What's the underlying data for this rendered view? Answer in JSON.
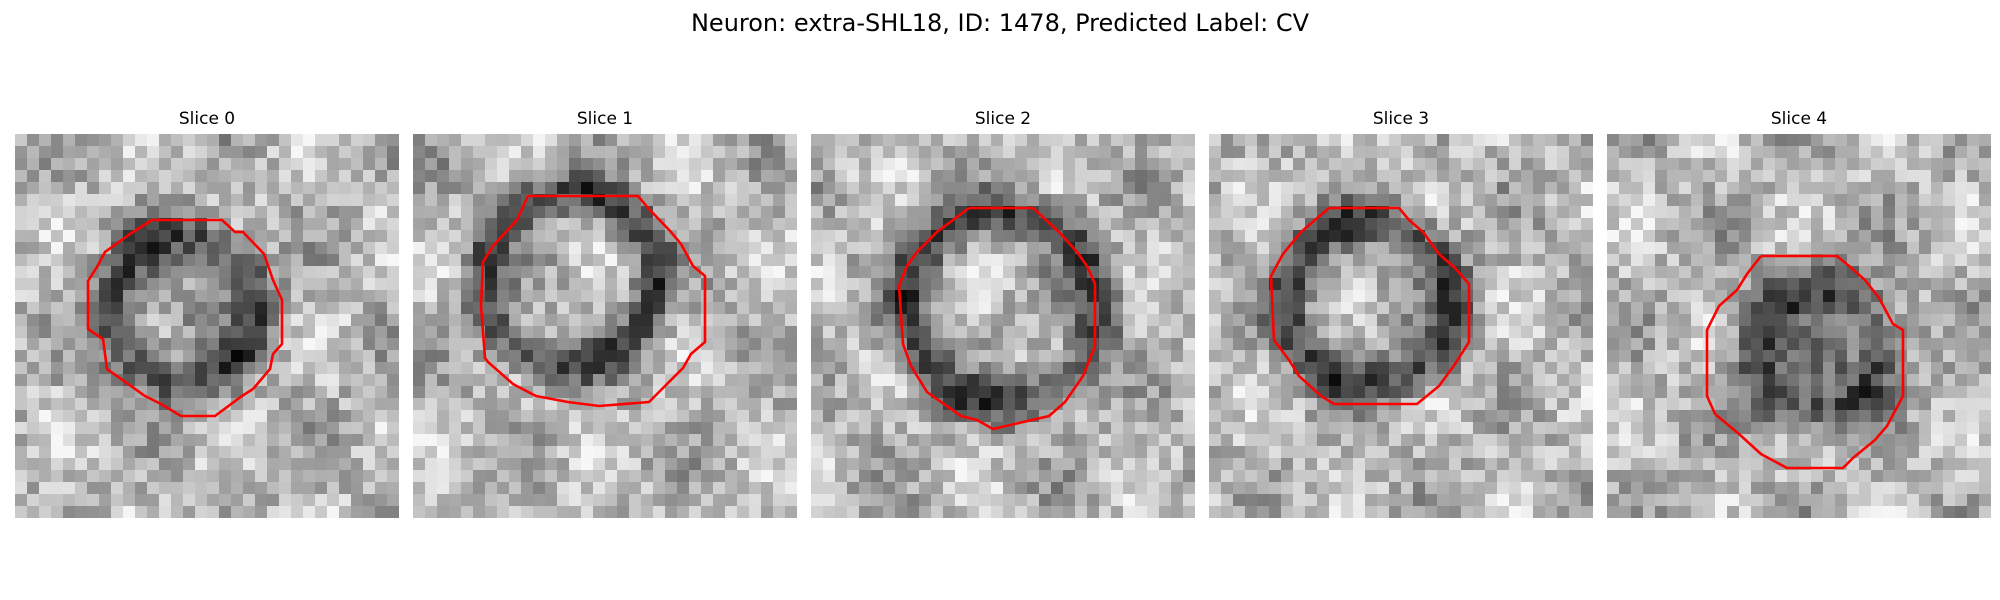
{
  "figure": {
    "title": "Neuron: extra-SHL18, ID: 1478, Predicted Label: CV"
  },
  "contour_color": "#ff0000",
  "panels": [
    {
      "title": "Slice 0",
      "image": "grayscale-em-patch",
      "contour": "red-polygon"
    },
    {
      "title": "Slice 1",
      "image": "grayscale-em-patch",
      "contour": "red-polygon"
    },
    {
      "title": "Slice 2",
      "image": "grayscale-em-patch",
      "contour": "red-polygon"
    },
    {
      "title": "Slice 3",
      "image": "grayscale-em-patch",
      "contour": "red-polygon"
    },
    {
      "title": "Slice 4",
      "image": "grayscale-em-patch",
      "contour": "red-polygon"
    }
  ]
}
